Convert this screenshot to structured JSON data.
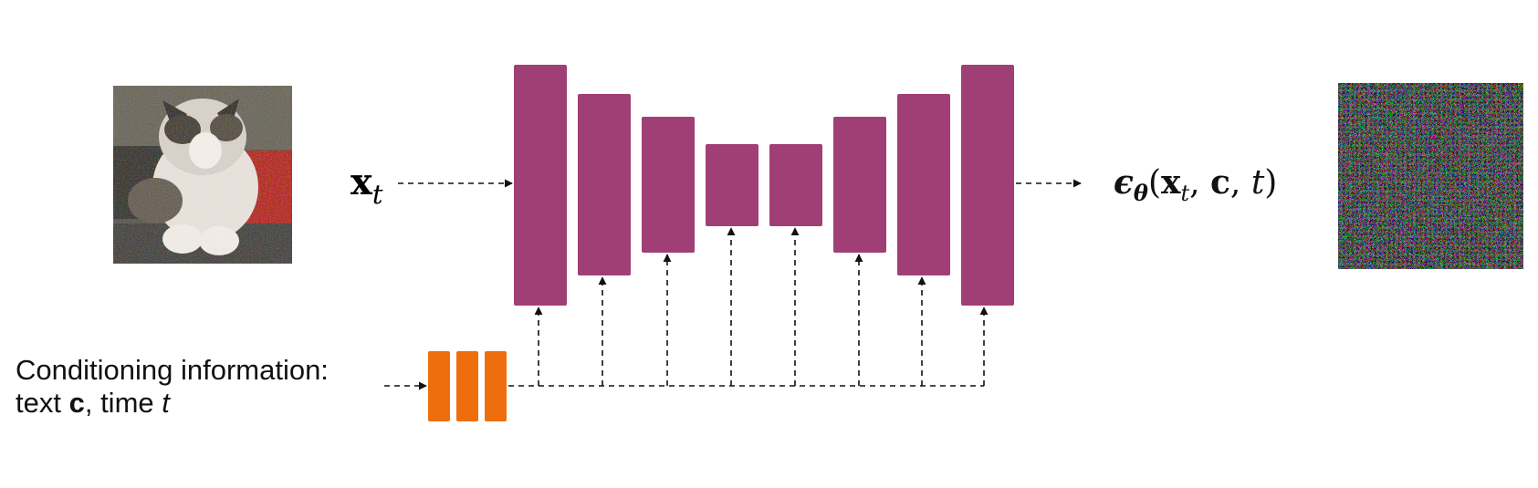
{
  "colors": {
    "unet_block": "#a03f75",
    "cond_block": "#ee6e0e",
    "arrow": "#111111"
  },
  "input_image": {
    "icon": "noisy-cat-image-icon"
  },
  "output_image": {
    "icon": "noise-image-icon"
  },
  "input_label": {
    "symbol": "x",
    "subscript": "t"
  },
  "output_label": {
    "eps": "ϵ",
    "theta": "θ",
    "open": "(",
    "x": "x",
    "x_sub": "t",
    "comma1": ", ",
    "c": "c",
    "comma2": ", ",
    "t": "t",
    "close": ")"
  },
  "conditioning": {
    "line1": "Conditioning information:",
    "line2_prefix": "text ",
    "line2_c": "c",
    "line2_mid": ", time ",
    "line2_t": "t"
  }
}
